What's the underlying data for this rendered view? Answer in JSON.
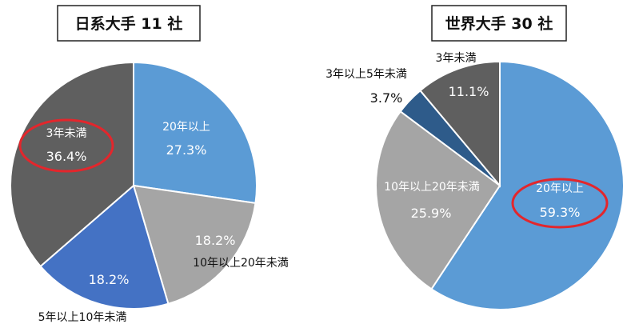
{
  "colors": {
    "blue_light": "#5b9bd5",
    "gray": "#a5a5a5",
    "blue_dark_left": "#4472c4",
    "dark_gray": "#5f5f5f",
    "navy": "#2e5b8a",
    "highlight_red": "#e3262c"
  },
  "chart_data": [
    {
      "type": "pie",
      "title": "日系大手 11 社",
      "slices": [
        {
          "label": "20年以上",
          "value": 27.3,
          "display": "27.3%",
          "color": "#5b9bd5"
        },
        {
          "label": "10年以上20年未満",
          "value": 18.2,
          "display": "18.2%",
          "color": "#a5a5a5"
        },
        {
          "label": "5年以上10年未満",
          "value": 18.2,
          "display": "18.2%",
          "color": "#4472c4"
        },
        {
          "label": "3年未満",
          "value": 36.4,
          "display": "36.4%",
          "color": "#5f5f5f",
          "highlighted": true
        }
      ]
    },
    {
      "type": "pie",
      "title": "世界大手 30 社",
      "slices": [
        {
          "label": "20年以上",
          "value": 59.3,
          "display": "59.3%",
          "color": "#5b9bd5",
          "highlighted": true
        },
        {
          "label": "10年以上20年未満",
          "value": 25.9,
          "display": "25.9%",
          "color": "#a5a5a5"
        },
        {
          "label": "3年以上5年未満",
          "value": 3.7,
          "display": "3.7%",
          "color": "#2e5b8a"
        },
        {
          "label": "3年未満",
          "value": 11.1,
          "display": "11.1%",
          "color": "#5f5f5f"
        }
      ]
    }
  ]
}
